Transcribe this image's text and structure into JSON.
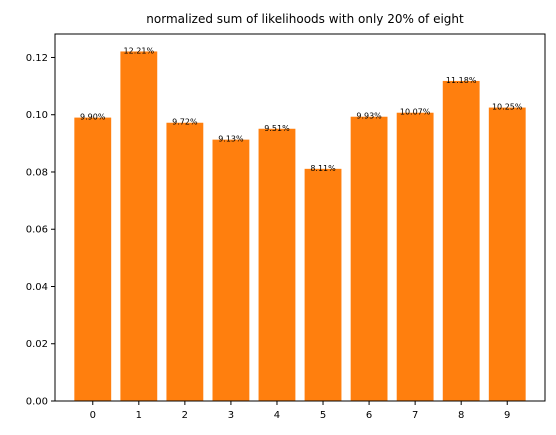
{
  "chart_data": {
    "type": "bar",
    "title": "normalized sum of likelihoods with only 20% of eight",
    "xlabel": "",
    "ylabel": "",
    "categories": [
      "0",
      "1",
      "2",
      "3",
      "4",
      "5",
      "6",
      "7",
      "8",
      "9"
    ],
    "values": [
      0.099,
      0.1221,
      0.0972,
      0.0913,
      0.0951,
      0.0811,
      0.0993,
      0.1007,
      0.1118,
      0.1025
    ],
    "data_labels": [
      "9.90%",
      "12.21%",
      "9.72%",
      "9.13%",
      "9.51%",
      "8.11%",
      "9.93%",
      "10.07%",
      "11.18%",
      "10.25%"
    ],
    "ylim": [
      0,
      0.1282
    ],
    "yticks": [
      0.0,
      0.02,
      0.04,
      0.06,
      0.08,
      0.1,
      0.12
    ],
    "ytick_labels": [
      "0.00",
      "0.02",
      "0.04",
      "0.06",
      "0.08",
      "0.10",
      "0.12"
    ],
    "bar_color": "#ff7f0e",
    "grid": false,
    "legend": "none"
  }
}
